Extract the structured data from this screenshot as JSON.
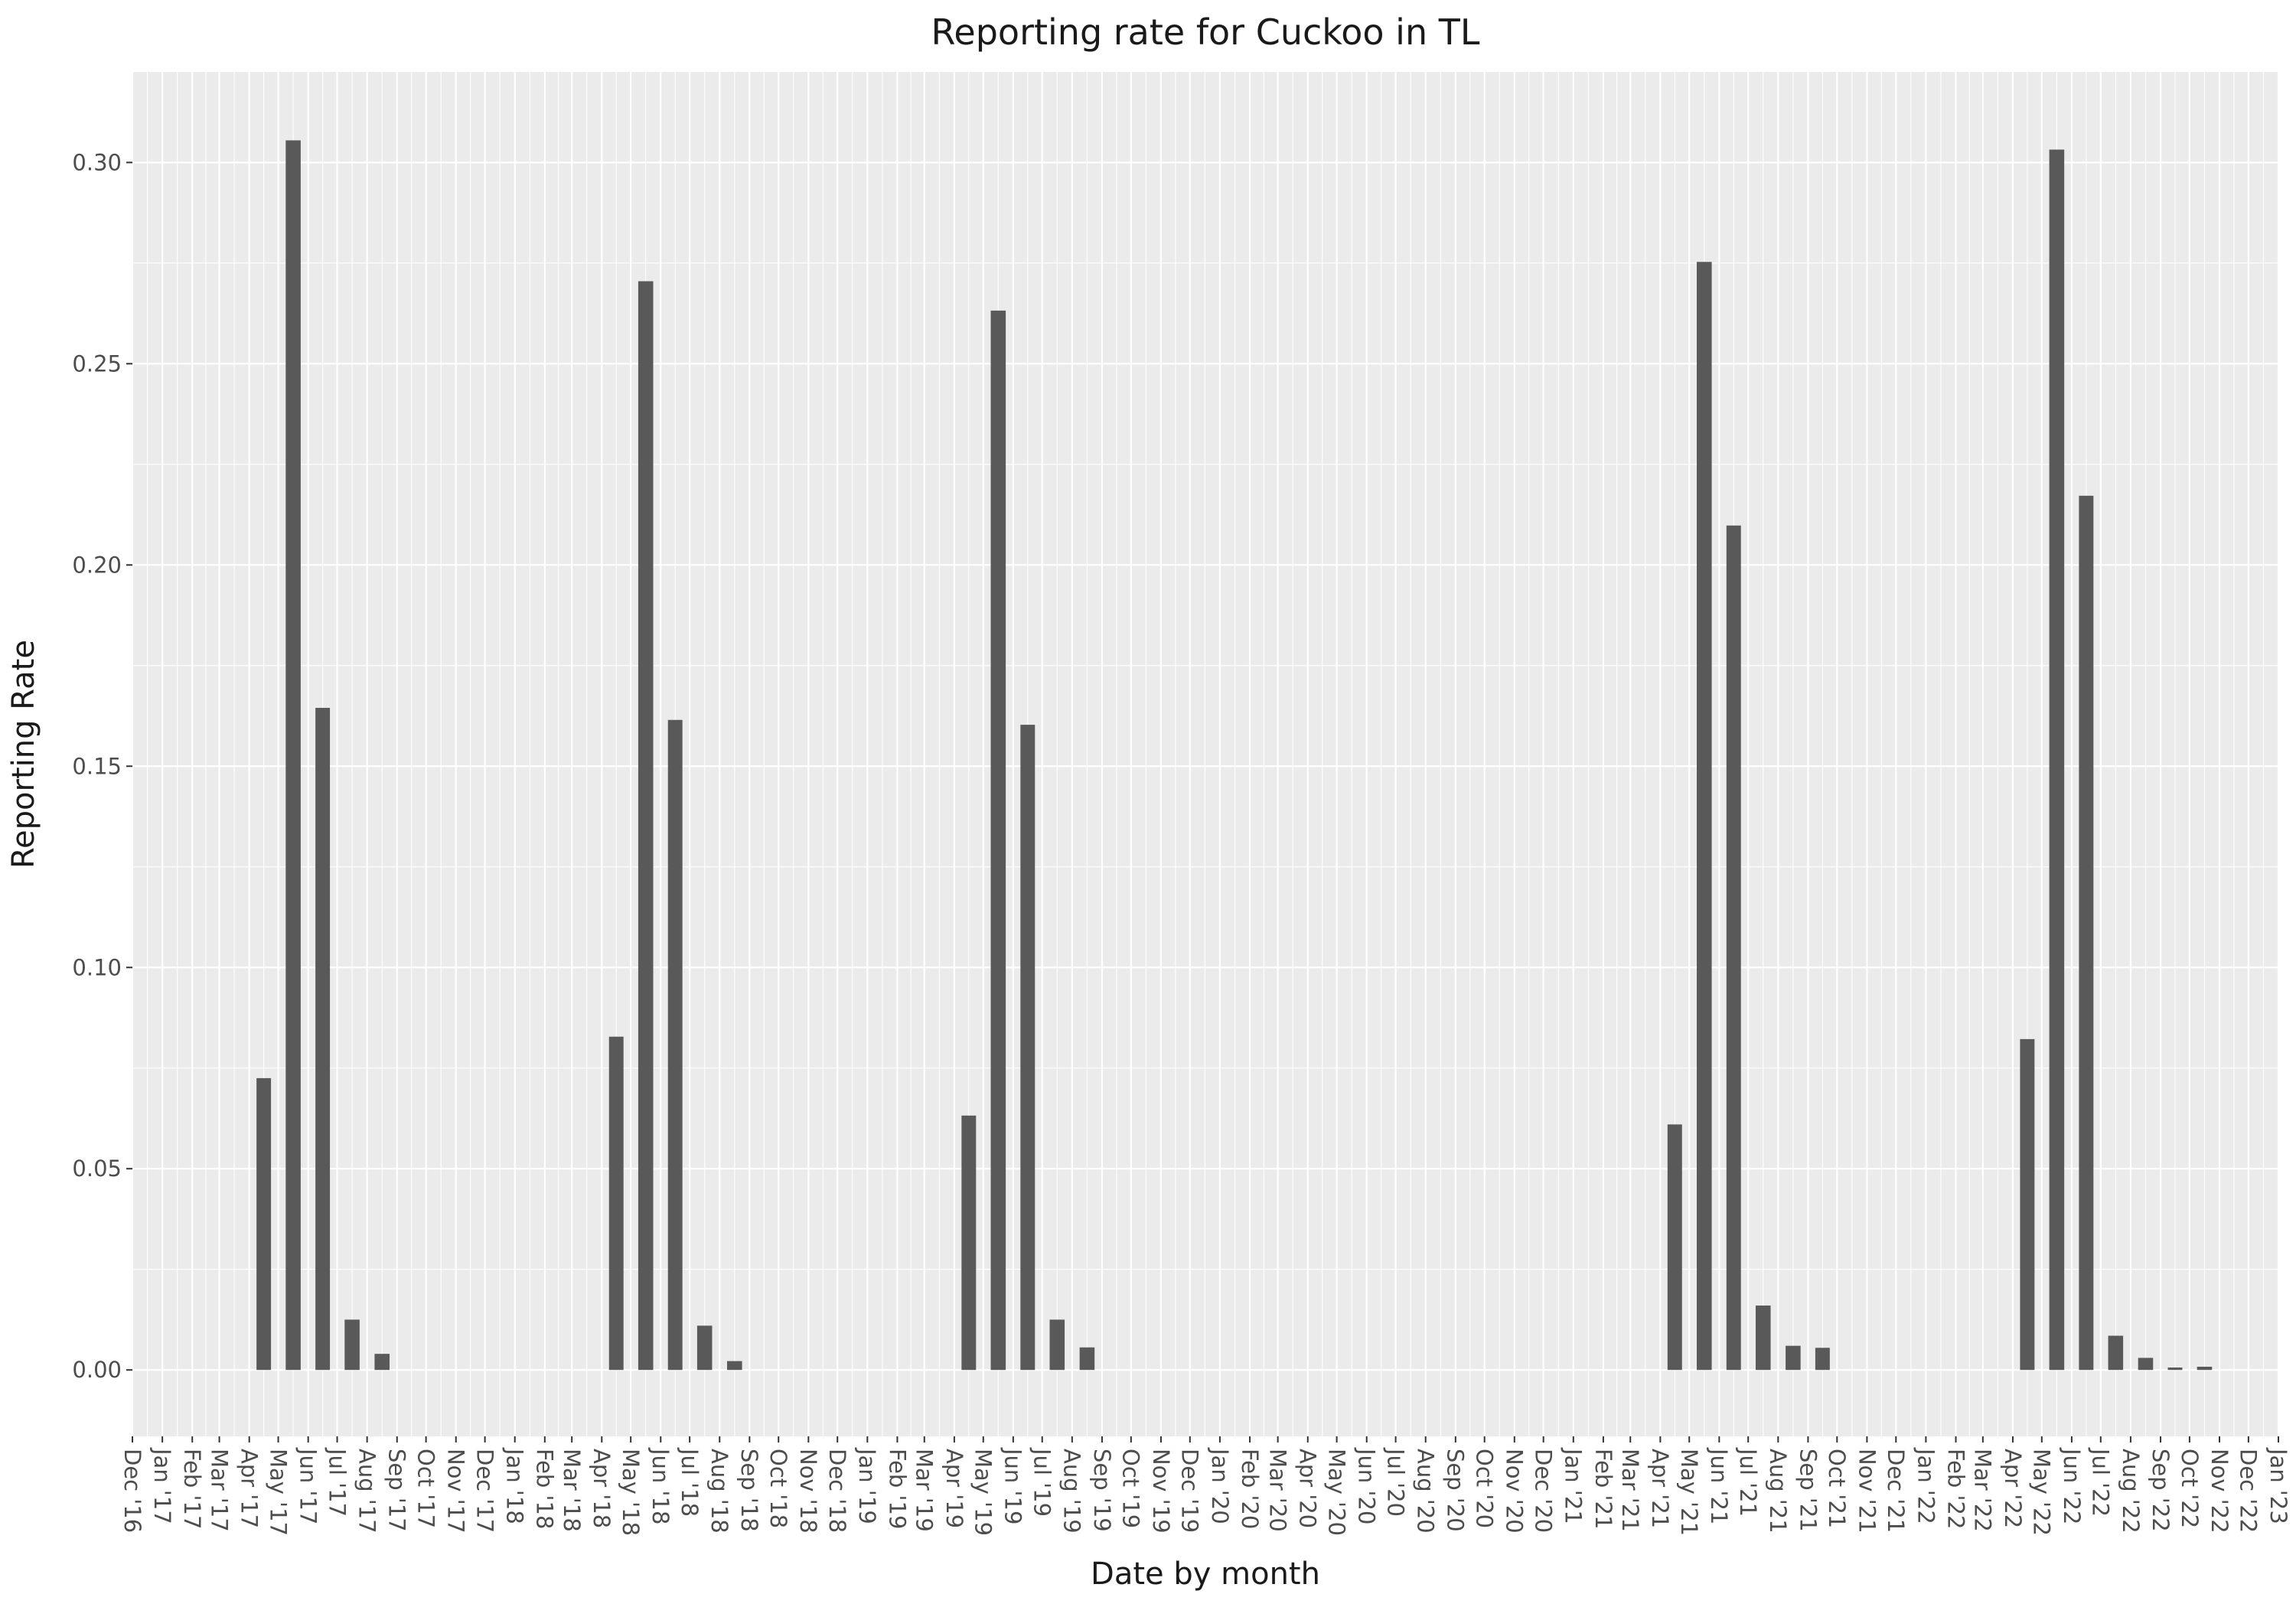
{
  "chart_data": {
    "type": "bar",
    "title": "Reporting rate for Cuckoo in TL",
    "xlabel": "Date by month",
    "ylabel": "Reporting Rate",
    "ylim": [
      -0.0165,
      0.3225
    ],
    "yticks": [
      0.0,
      0.05,
      0.1,
      0.15,
      0.2,
      0.25,
      0.3
    ],
    "ytick_labels": [
      "0.00",
      "0.05",
      "0.10",
      "0.15",
      "0.20",
      "0.25",
      "0.30"
    ],
    "x_range": [
      "Dec '16",
      "Jan '23"
    ],
    "categories": [
      "Dec '16",
      "Jan '17",
      "Feb '17",
      "Mar '17",
      "Apr '17",
      "May '17",
      "Jun '17",
      "Jul '17",
      "Aug '17",
      "Sep '17",
      "Oct '17",
      "Nov '17",
      "Dec '17",
      "Jan '18",
      "Feb '18",
      "Mar '18",
      "Apr '18",
      "May '18",
      "Jun '18",
      "Jul '18",
      "Aug '18",
      "Sep '18",
      "Oct '18",
      "Nov '18",
      "Dec '18",
      "Jan '19",
      "Feb '19",
      "Mar '19",
      "Apr '19",
      "May '19",
      "Jun '19",
      "Jul '19",
      "Aug '19",
      "Sep '19",
      "Oct '19",
      "Nov '19",
      "Dec '19",
      "Jan '20",
      "Feb '20",
      "Mar '20",
      "Apr '20",
      "May '20",
      "Jun '20",
      "Jul '20",
      "Aug '20",
      "Sep '20",
      "Oct '20",
      "Nov '20",
      "Dec '20",
      "Jan '21",
      "Feb '21",
      "Mar '21",
      "Apr '21",
      "May '21",
      "Jun '21",
      "Jul '21",
      "Aug '21",
      "Sep '21",
      "Oct '21",
      "Nov '21",
      "Dec '21",
      "Jan '22",
      "Feb '22",
      "Mar '22",
      "Apr '22",
      "May '22",
      "Jun '22",
      "Jul '22",
      "Aug '22",
      "Sep '22",
      "Oct '22",
      "Nov '22",
      "Dec '22",
      "Jan '23"
    ],
    "bars": [
      {
        "month": "Apr '17",
        "value": 0.0725
      },
      {
        "month": "May '17",
        "value": 0.3055
      },
      {
        "month": "Jun '17",
        "value": 0.1645
      },
      {
        "month": "Jul '17",
        "value": 0.0125
      },
      {
        "month": "Aug '17",
        "value": 0.004
      },
      {
        "month": "Apr '18",
        "value": 0.0828
      },
      {
        "month": "May '18",
        "value": 0.2705
      },
      {
        "month": "Jun '18",
        "value": 0.1615
      },
      {
        "month": "Jul '18",
        "value": 0.011
      },
      {
        "month": "Aug '18",
        "value": 0.0022
      },
      {
        "month": "Apr '19",
        "value": 0.0632
      },
      {
        "month": "May '19",
        "value": 0.2632
      },
      {
        "month": "Jun '19",
        "value": 0.1603
      },
      {
        "month": "Jul '19",
        "value": 0.0125
      },
      {
        "month": "Aug '19",
        "value": 0.0056
      },
      {
        "month": "Apr '21",
        "value": 0.061
      },
      {
        "month": "May '21",
        "value": 0.2753
      },
      {
        "month": "Jun '21",
        "value": 0.2098
      },
      {
        "month": "Jul '21",
        "value": 0.016
      },
      {
        "month": "Aug '21",
        "value": 0.006
      },
      {
        "month": "Sep '21",
        "value": 0.0055
      },
      {
        "month": "Apr '22",
        "value": 0.0822
      },
      {
        "month": "May '22",
        "value": 0.3032
      },
      {
        "month": "Jun '22",
        "value": 0.2172
      },
      {
        "month": "Jul '22",
        "value": 0.0085
      },
      {
        "month": "Aug '22",
        "value": 0.003
      },
      {
        "month": "Sep '22",
        "value": 0.0006
      },
      {
        "month": "Oct '22",
        "value": 0.0008
      }
    ],
    "grid": true,
    "colors": {
      "panel_background": "#ebebeb",
      "grid_line": "#ffffff",
      "bar_fill": "#595959",
      "text": "#1a1a1a",
      "tick_text": "#4d4d4d",
      "tick_mark": "#333333"
    }
  }
}
